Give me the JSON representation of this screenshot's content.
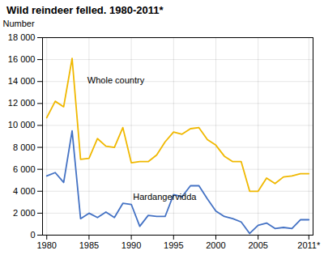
{
  "chart_data": {
    "type": "line",
    "title": "Wild reindeer felled. 1980-2011*",
    "ylabel": "Number",
    "x": [
      1980,
      1981,
      1982,
      1983,
      1984,
      1985,
      1986,
      1987,
      1988,
      1989,
      1990,
      1991,
      1992,
      1993,
      1994,
      1995,
      1996,
      1997,
      1998,
      1999,
      2000,
      2001,
      2002,
      2003,
      2004,
      2005,
      2006,
      2007,
      2008,
      2009,
      2010,
      2011
    ],
    "series": [
      {
        "name": "Whole country",
        "color": "#f0b800",
        "values": [
          10700,
          12200,
          11700,
          16100,
          6900,
          7000,
          8800,
          8100,
          8000,
          9800,
          6600,
          6700,
          6700,
          7300,
          8500,
          9400,
          9200,
          9700,
          9800,
          8700,
          8200,
          7200,
          6700,
          6700,
          4000,
          4000,
          5200,
          4700,
          5300,
          5400,
          5600,
          5600
        ]
      },
      {
        "name": "Hardangervidda",
        "color": "#4472c4",
        "values": [
          5400,
          5700,
          4800,
          9500,
          1500,
          2000,
          1600,
          2100,
          1600,
          2900,
          2800,
          800,
          1800,
          1700,
          1700,
          3700,
          3500,
          4500,
          4500,
          3300,
          2200,
          1700,
          1500,
          1200,
          150,
          900,
          1100,
          600,
          700,
          600,
          1400,
          1400
        ]
      }
    ],
    "annotations": [
      {
        "text": "Whole country",
        "x": 1984.8,
        "y": 13800
      },
      {
        "text": "Hardangervidda",
        "x": 1990.2,
        "y": 3200
      }
    ],
    "xlim": [
      1979.5,
      2011.5
    ],
    "xticks": [
      1980,
      1985,
      1990,
      1995,
      2000,
      2005,
      {
        "value": 2011,
        "label": "2011*"
      }
    ],
    "ylim": [
      0,
      18000
    ],
    "yticks": [
      0,
      {
        "value": 2000,
        "label": "2 000"
      },
      {
        "value": 4000,
        "label": "4 000"
      },
      {
        "value": 6000,
        "label": "6 000"
      },
      {
        "value": 8000,
        "label": "8 000"
      },
      {
        "value": 10000,
        "label": "10 000"
      },
      {
        "value": 12000,
        "label": "12 000"
      },
      {
        "value": 14000,
        "label": "14 000"
      },
      {
        "value": 16000,
        "label": "16 000"
      },
      {
        "value": 18000,
        "label": "18 000"
      }
    ],
    "grid": true
  }
}
